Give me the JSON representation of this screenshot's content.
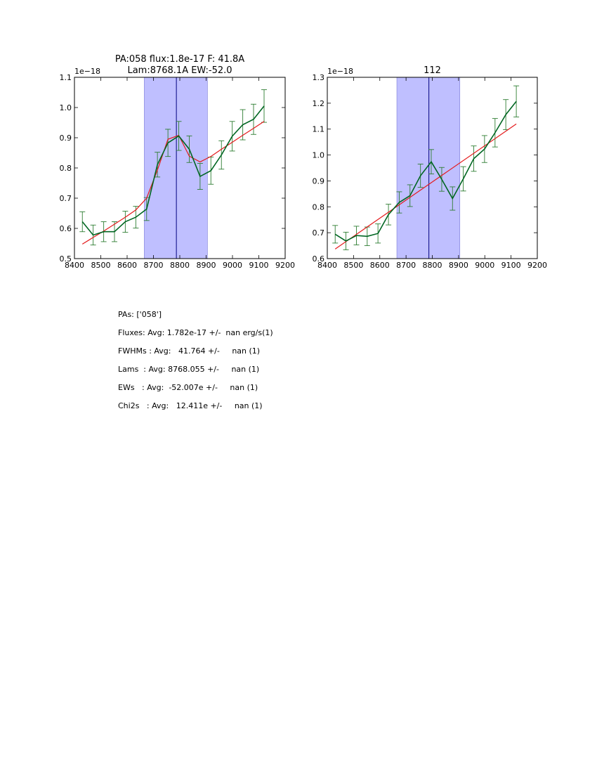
{
  "chart_data": [
    {
      "type": "line",
      "title": "PA:058 flux:1.8e-17 F: 41.8A\nLam:8768.1A EW:-52.0",
      "offset_label": "1e−18",
      "xlim": [
        8400,
        9200
      ],
      "ylim": [
        0.5,
        1.1
      ],
      "xticks": [
        8400,
        8500,
        8600,
        8700,
        8800,
        8900,
        9000,
        9100,
        9200
      ],
      "yticks": [
        0.5,
        0.6,
        0.7,
        0.8,
        0.9,
        1.0,
        1.1
      ],
      "ytick_labels": [
        "0.5",
        "0.6",
        "0.7",
        "0.8",
        "0.9",
        "1.0",
        "1.1"
      ],
      "band": [
        8665,
        8905
      ],
      "vline": 8787,
      "colors": {
        "data": "#006622",
        "errorbar": "#2e7d32",
        "model": "#e41a1c",
        "band": "#bfbfff",
        "vline": "#000080"
      },
      "series": [
        {
          "role": "data",
          "x": [
            8430,
            8471,
            8511,
            8552,
            8593,
            8633,
            8674,
            8715,
            8755,
            8796,
            8836,
            8877,
            8918,
            8958,
            8999,
            9039,
            9080,
            9120
          ],
          "y": [
            0.622,
            0.578,
            0.589,
            0.589,
            0.622,
            0.637,
            0.664,
            0.811,
            0.883,
            0.906,
            0.862,
            0.772,
            0.791,
            0.843,
            0.905,
            0.943,
            0.961,
            1.005
          ],
          "err": [
            0.033,
            0.033,
            0.033,
            0.033,
            0.035,
            0.036,
            0.038,
            0.041,
            0.045,
            0.048,
            0.044,
            0.043,
            0.045,
            0.047,
            0.049,
            0.05,
            0.05,
            0.054
          ]
        },
        {
          "role": "model",
          "x": [
            8430,
            8471,
            8511,
            8552,
            8593,
            8633,
            8674,
            8715,
            8755,
            8796,
            8836,
            8877,
            8918,
            8958,
            8999,
            9039,
            9080,
            9120
          ],
          "y": [
            0.548,
            0.57,
            0.591,
            0.614,
            0.637,
            0.661,
            0.7,
            0.793,
            0.895,
            0.908,
            0.839,
            0.82,
            0.838,
            0.862,
            0.885,
            0.908,
            0.931,
            0.954
          ]
        }
      ]
    },
    {
      "type": "line",
      "title": "112",
      "offset_label": "1e−18",
      "xlim": [
        8400,
        9200
      ],
      "ylim": [
        0.6,
        1.3
      ],
      "xticks": [
        8400,
        8500,
        8600,
        8700,
        8800,
        8900,
        9000,
        9100,
        9200
      ],
      "yticks": [
        0.6,
        0.7,
        0.8,
        0.9,
        1.0,
        1.1,
        1.2,
        1.3
      ],
      "ytick_labels": [
        "0.6",
        "0.7",
        "0.8",
        "0.9",
        "1.0",
        "1.1",
        "1.2",
        "1.3"
      ],
      "band": [
        8665,
        8905
      ],
      "vline": 8787,
      "colors": {
        "data": "#006622",
        "errorbar": "#2e7d32",
        "model": "#e41a1c",
        "band": "#bfbfff",
        "vline": "#000080"
      },
      "series": [
        {
          "role": "data",
          "x": [
            8430,
            8471,
            8511,
            8552,
            8593,
            8633,
            8674,
            8715,
            8755,
            8796,
            8836,
            8877,
            8918,
            8958,
            8999,
            9039,
            9080,
            9120
          ],
          "y": [
            0.694,
            0.668,
            0.689,
            0.686,
            0.697,
            0.77,
            0.817,
            0.843,
            0.92,
            0.974,
            0.906,
            0.832,
            0.908,
            0.986,
            1.023,
            1.086,
            1.156,
            1.207
          ],
          "err": [
            0.034,
            0.034,
            0.036,
            0.036,
            0.037,
            0.04,
            0.041,
            0.042,
            0.045,
            0.047,
            0.046,
            0.045,
            0.047,
            0.049,
            0.052,
            0.055,
            0.058,
            0.06
          ]
        },
        {
          "role": "model",
          "x": [
            8430,
            9120
          ],
          "y": [
            0.637,
            1.12
          ]
        }
      ]
    }
  ],
  "summary": [
    "PAs: ['058']",
    "Fluxes: Avg: 1.782e-17 +/-  nan erg/s(1)",
    "FWHMs : Avg:   41.764 +/-     nan (1)",
    "Lams  : Avg: 8768.055 +/-     nan (1)",
    "EWs   : Avg:  -52.007e +/-     nan (1)",
    "Chi2s   : Avg:   12.411e +/-     nan (1)"
  ]
}
